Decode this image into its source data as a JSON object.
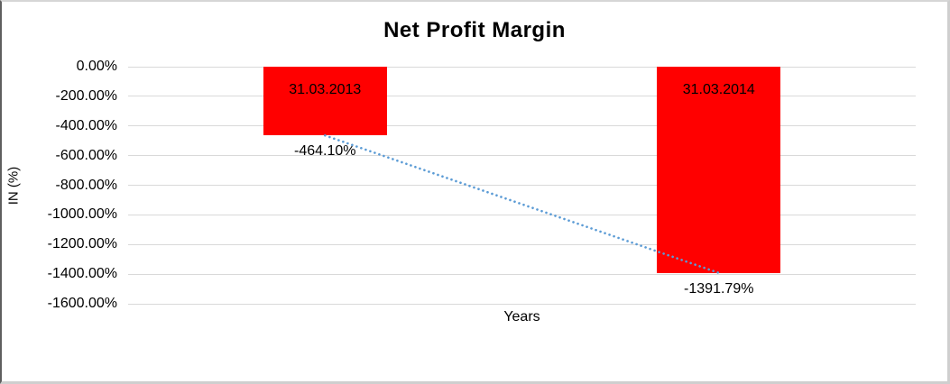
{
  "chart_data": {
    "type": "bar",
    "title": "Net Profit Margin",
    "xlabel": "Years",
    "ylabel": "IN (%)",
    "categories": [
      "31.03.2013",
      "31.03.2014"
    ],
    "values": [
      -464.1,
      -1391.79
    ],
    "value_labels": [
      "-464.10%",
      "-1391.79%"
    ],
    "ylim": [
      -1600,
      0
    ],
    "yticks": [
      0,
      -200,
      -400,
      -600,
      -800,
      -1000,
      -1200,
      -1400,
      -1600
    ],
    "ytick_labels": [
      "0.00%",
      "-200.00%",
      "-400.00%",
      "-600.00%",
      "-800.00%",
      "-1000.00%",
      "-1200.00%",
      "-1400.00%",
      "-1600.00%"
    ],
    "grid": true,
    "legend": "none",
    "bar_color": "#ff0000",
    "gridline_color": "#d9d9d9",
    "trendline": {
      "type": "dotted-line",
      "color": "#5b9bd5",
      "connects": "bar value points"
    }
  }
}
